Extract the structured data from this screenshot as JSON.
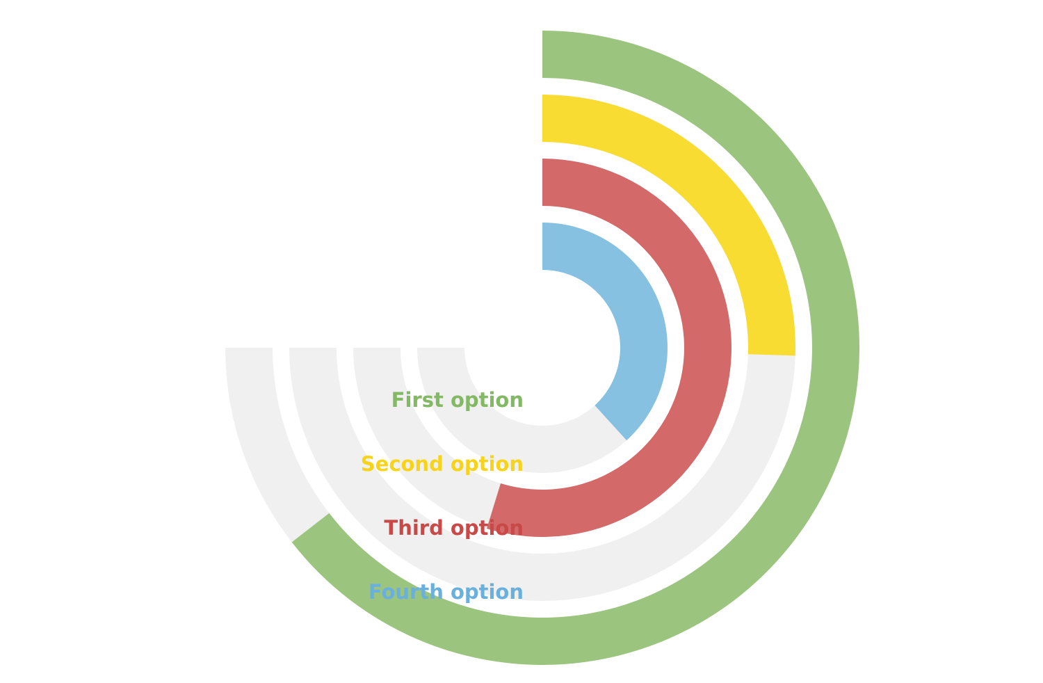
{
  "chart_data": {
    "type": "radial-bar",
    "start_angle_deg": 0,
    "max_angle_deg": 270,
    "value_range": [
      0,
      100
    ],
    "track_color": "#f0f0f0",
    "label_position": "left of start",
    "series": [
      {
        "name": "First option",
        "value": 86,
        "color": "#9bc47e",
        "label_color": "#83b864"
      },
      {
        "name": "Second option",
        "value": 34,
        "color": "#f9dc32",
        "label_color": "#f7d31a"
      },
      {
        "name": "Third option",
        "value": 73,
        "color": "#d36969",
        "label_color": "#c94848"
      },
      {
        "name": "Fourth option",
        "value": 51,
        "color": "#86c1e1",
        "label_color": "#6ab0dc"
      }
    ]
  }
}
